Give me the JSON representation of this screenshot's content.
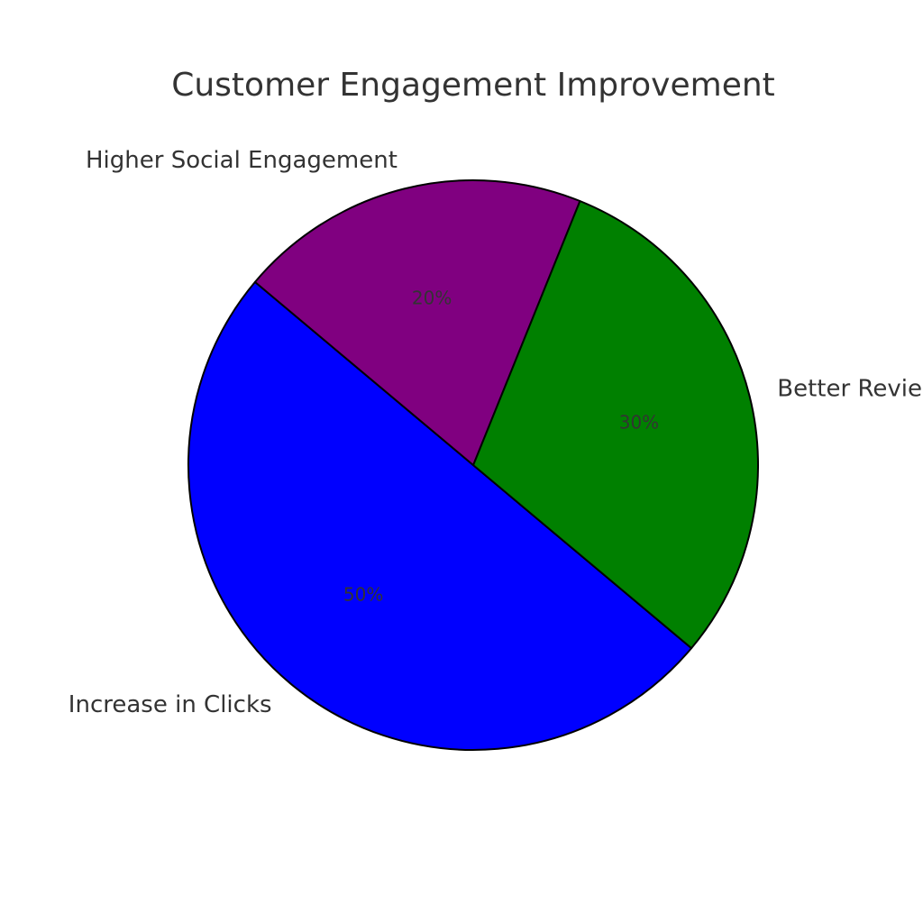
{
  "chart_data": {
    "type": "pie",
    "title": "Customer Engagement Improvement",
    "categories": [
      "Increase in Clicks",
      "Better Reviews",
      "Higher Social Engagement"
    ],
    "values": [
      50,
      30,
      20
    ],
    "value_labels": [
      "50%",
      "30%",
      "20%"
    ],
    "colors": [
      "#0000ff",
      "#008000",
      "#800080"
    ]
  }
}
